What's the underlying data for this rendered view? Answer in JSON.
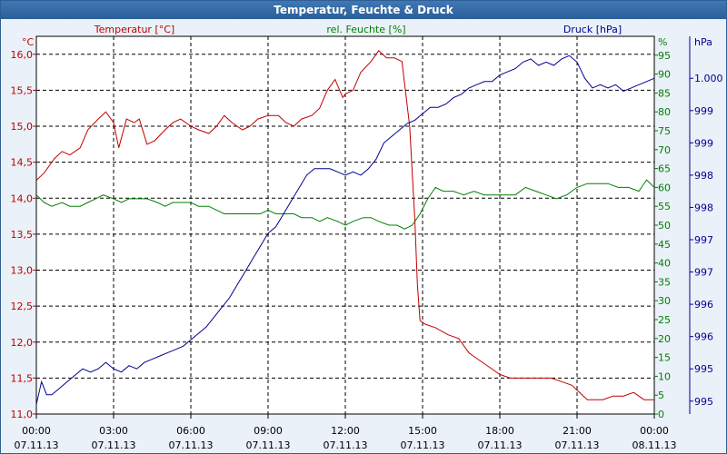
{
  "window": {
    "title": "Temperatur, Feuchte & Druck"
  },
  "colors": {
    "temperature": "#c00000",
    "humidity": "#008000",
    "pressure": "#000090",
    "grid": "#000000",
    "background": "#eaf1f8"
  },
  "chart_data": {
    "type": "line",
    "title": "Temperatur, Feuchte & Druck",
    "grid": true,
    "x": {
      "hours_range": [
        0,
        24
      ],
      "tick_hours": [
        0,
        3,
        6,
        9,
        12,
        15,
        18,
        21,
        24
      ],
      "time_labels": [
        "00:00",
        "03:00",
        "06:00",
        "09:00",
        "12:00",
        "15:00",
        "18:00",
        "21:00",
        "00:00"
      ],
      "date_labels": [
        "07.11.13",
        "07.11.13",
        "07.11.13",
        "07.11.13",
        "07.11.13",
        "07.11.13",
        "07.11.13",
        "07.11.13",
        "08.11.13"
      ]
    },
    "axes": {
      "temperature": {
        "unit_label": "°C",
        "legend": "Temperatur [°C]",
        "ylim": [
          11.0,
          16.25
        ],
        "ticks": [
          11.0,
          11.5,
          12.0,
          12.5,
          13.0,
          13.5,
          14.0,
          14.5,
          15.0,
          15.5,
          16.0
        ],
        "tick_labels": [
          "11,0",
          "11,5",
          "12,0",
          "12,5",
          "13,0",
          "13,5",
          "14,0",
          "14,5",
          "15,0",
          "15,5",
          "16,0"
        ]
      },
      "humidity": {
        "unit_label": "%",
        "legend": "rel. Feuchte [%]",
        "ylim": [
          0,
          100
        ],
        "ticks": [
          0,
          5,
          10,
          15,
          20,
          25,
          30,
          35,
          40,
          45,
          50,
          55,
          60,
          65,
          70,
          75,
          80,
          85,
          90,
          95
        ],
        "tick_labels": [
          "0",
          "5",
          "10",
          "15",
          "20",
          "25",
          "30",
          "35",
          "40",
          "45",
          "50",
          "55",
          "60",
          "65",
          "70",
          "75",
          "80",
          "85",
          "90",
          "95"
        ]
      },
      "pressure": {
        "unit_label": "hPa",
        "legend": "Druck [hPa]",
        "ylim": [
          994.8,
          1000.65
        ],
        "ticks": [
          995.0,
          995.5,
          996.0,
          996.5,
          997.0,
          997.5,
          998.0,
          998.5,
          999.0,
          999.5,
          1000.0
        ],
        "tick_labels": [
          "995",
          "995",
          "996",
          "996",
          "997",
          "997",
          "998",
          "998",
          "999",
          "999",
          "1.000"
        ]
      }
    },
    "series": [
      {
        "name": "Temperatur [°C]",
        "axis": "temperature",
        "x": [
          0,
          0.3,
          0.7,
          1.0,
          1.3,
          1.7,
          2.0,
          2.4,
          2.7,
          3.0,
          3.2,
          3.5,
          3.8,
          4.0,
          4.3,
          4.6,
          5.0,
          5.3,
          5.6,
          6.0,
          6.3,
          6.7,
          7.0,
          7.3,
          7.6,
          8.0,
          8.3,
          8.6,
          9.0,
          9.4,
          9.7,
          10.0,
          10.3,
          10.7,
          11.0,
          11.3,
          11.6,
          11.9,
          12.0,
          12.3,
          12.6,
          13.0,
          13.3,
          13.6,
          13.9,
          14.2,
          14.5,
          14.7,
          14.8,
          14.9,
          15.1,
          15.5,
          16.0,
          16.4,
          16.8,
          17.2,
          17.6,
          18.0,
          18.4,
          18.8,
          19.2,
          19.6,
          20.0,
          20.4,
          20.8,
          21.1,
          21.4,
          21.7,
          22.0,
          22.4,
          22.8,
          23.2,
          23.6,
          24.0
        ],
        "values": [
          14.25,
          14.35,
          14.55,
          14.65,
          14.6,
          14.7,
          14.95,
          15.1,
          15.2,
          15.05,
          14.7,
          15.1,
          15.05,
          15.1,
          14.75,
          14.8,
          14.95,
          15.05,
          15.1,
          15.0,
          14.95,
          14.9,
          15.0,
          15.15,
          15.05,
          14.95,
          15.0,
          15.1,
          15.15,
          15.15,
          15.05,
          15.0,
          15.1,
          15.15,
          15.25,
          15.5,
          15.65,
          15.4,
          15.45,
          15.5,
          15.75,
          15.9,
          16.05,
          15.95,
          15.95,
          15.9,
          15.0,
          13.7,
          12.8,
          12.3,
          12.25,
          12.2,
          12.1,
          12.05,
          11.85,
          11.75,
          11.65,
          11.55,
          11.5,
          11.5,
          11.5,
          11.5,
          11.5,
          11.45,
          11.4,
          11.3,
          11.2,
          11.2,
          11.2,
          11.25,
          11.25,
          11.3,
          11.2,
          11.2
        ]
      },
      {
        "name": "rel. Feuchte [%]",
        "axis": "humidity",
        "x": [
          0,
          0.3,
          0.6,
          1.0,
          1.3,
          1.7,
          2.0,
          2.3,
          2.6,
          3.0,
          3.3,
          3.6,
          4.0,
          4.3,
          4.7,
          5.0,
          5.3,
          5.7,
          6.0,
          6.3,
          6.7,
          7.0,
          7.3,
          7.6,
          8.0,
          8.3,
          8.7,
          9.0,
          9.3,
          9.7,
          10.0,
          10.3,
          10.7,
          11.0,
          11.3,
          11.7,
          12.0,
          12.3,
          12.7,
          13.0,
          13.3,
          13.7,
          14.0,
          14.3,
          14.6,
          14.9,
          15.2,
          15.5,
          15.8,
          16.2,
          16.6,
          17.0,
          17.4,
          17.8,
          18.2,
          18.6,
          19.0,
          19.4,
          19.8,
          20.2,
          20.6,
          21.0,
          21.4,
          21.8,
          22.2,
          22.6,
          23.0,
          23.4,
          23.7,
          24.0
        ],
        "values": [
          58,
          56,
          55,
          56,
          55,
          55,
          56,
          57,
          58,
          57,
          56,
          57,
          57,
          57,
          56,
          55,
          56,
          56,
          56,
          55,
          55,
          54,
          53,
          53,
          53,
          53,
          53,
          54,
          53,
          53,
          53,
          52,
          52,
          51,
          52,
          51,
          50,
          51,
          52,
          52,
          51,
          50,
          50,
          49,
          50,
          53,
          57,
          60,
          59,
          59,
          58,
          59,
          58,
          58,
          58,
          58,
          60,
          59,
          58,
          57,
          58,
          60,
          61,
          61,
          61,
          60,
          60,
          59,
          62,
          60
        ]
      },
      {
        "name": "Druck [hPa]",
        "axis": "pressure",
        "x": [
          0,
          0.2,
          0.4,
          0.6,
          0.9,
          1.2,
          1.5,
          1.8,
          2.1,
          2.4,
          2.7,
          3.0,
          3.3,
          3.6,
          3.9,
          4.2,
          4.5,
          4.8,
          5.1,
          5.4,
          5.7,
          6.0,
          6.3,
          6.6,
          6.9,
          7.2,
          7.5,
          7.8,
          8.1,
          8.4,
          8.7,
          9.0,
          9.3,
          9.6,
          9.9,
          10.2,
          10.5,
          10.8,
          11.1,
          11.4,
          11.7,
          12.0,
          12.3,
          12.6,
          12.9,
          13.2,
          13.5,
          13.8,
          14.1,
          14.4,
          14.7,
          15.0,
          15.3,
          15.6,
          15.9,
          16.2,
          16.5,
          16.8,
          17.1,
          17.4,
          17.7,
          18.0,
          18.3,
          18.6,
          18.9,
          19.2,
          19.5,
          19.8,
          20.1,
          20.4,
          20.7,
          21.0,
          21.3,
          21.6,
          21.9,
          22.2,
          22.5,
          22.8,
          23.1,
          23.4,
          23.7,
          24.0
        ],
        "values": [
          994.95,
          995.3,
          995.1,
          995.1,
          995.2,
          995.3,
          995.4,
          995.5,
          995.45,
          995.5,
          995.6,
          995.5,
          995.45,
          995.55,
          995.5,
          995.6,
          995.65,
          995.7,
          995.75,
          995.8,
          995.85,
          995.95,
          996.05,
          996.15,
          996.3,
          996.45,
          996.6,
          996.8,
          997.0,
          997.2,
          997.4,
          997.6,
          997.7,
          997.9,
          998.1,
          998.3,
          998.5,
          998.6,
          998.6,
          998.6,
          998.55,
          998.5,
          998.55,
          998.5,
          998.6,
          998.75,
          999.0,
          999.1,
          999.2,
          999.3,
          999.35,
          999.45,
          999.55,
          999.55,
          999.6,
          999.7,
          999.75,
          999.85,
          999.9,
          999.95,
          999.95,
          1000.05,
          1000.1,
          1000.15,
          1000.25,
          1000.3,
          1000.2,
          1000.25,
          1000.2,
          1000.3,
          1000.35,
          1000.25,
          1000.0,
          999.85,
          999.9,
          999.85,
          999.9,
          999.8,
          999.85,
          999.9,
          999.95,
          1000.0
        ]
      }
    ]
  }
}
